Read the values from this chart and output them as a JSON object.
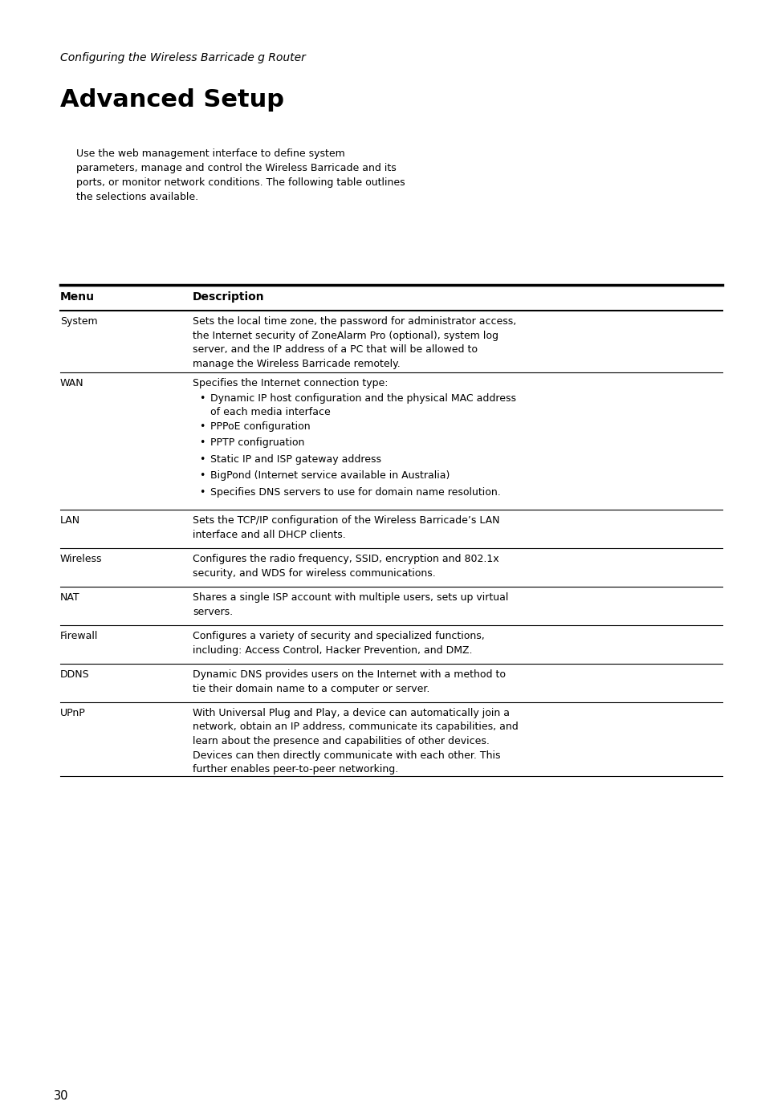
{
  "header_italic": "Configuring the Wireless Barricade g Router",
  "title": "Advanced Setup",
  "intro": "Use the web management interface to define system\nparameters, manage and control the Wireless Barricade and its\nports, or monitor network conditions. The following table outlines\nthe selections available.",
  "col1_header": "Menu",
  "col2_header": "Description",
  "rows": [
    {
      "menu": "System",
      "desc": "Sets the local time zone, the password for administrator access,\nthe Internet security of ZoneAlarm Pro (optional), system log\nserver, and the IP address of a PC that will be allowed to\nmanage the Wireless Barricade remotely.",
      "bullets": []
    },
    {
      "menu": "WAN",
      "desc": "Specifies the Internet connection type:",
      "bullets": [
        "Dynamic IP host configuration and the physical MAC address\nof each media interface",
        "PPPoE configuration",
        "PPTP configruation",
        "Static IP and ISP gateway address",
        "BigPond (Internet service available in Australia)",
        "Specifies DNS servers to use for domain name resolution."
      ]
    },
    {
      "menu": "LAN",
      "desc": "Sets the TCP/IP configuration of the Wireless Barricade’s LAN\ninterface and all DHCP clients.",
      "bullets": []
    },
    {
      "menu": "Wireless",
      "desc": "Configures the radio frequency, SSID, encryption and 802.1x\nsecurity, and WDS for wireless communications.",
      "bullets": []
    },
    {
      "menu": "NAT",
      "desc": "Shares a single ISP account with multiple users, sets up virtual\nservers.",
      "bullets": []
    },
    {
      "menu": "Firewall",
      "desc": "Configures a variety of security and specialized functions,\nincluding: Access Control, Hacker Prevention, and DMZ.",
      "bullets": []
    },
    {
      "menu": "DDNS",
      "desc": "Dynamic DNS provides users on the Internet with a method to\ntie their domain name to a computer or server.",
      "bullets": []
    },
    {
      "menu": "UPnP",
      "desc": "With Universal Plug and Play, a device can automatically join a\nnetwork, obtain an IP address, communicate its capabilities, and\nlearn about the presence and capabilities of other devices.\nDevices can then directly communicate with each other. This\nfurther enables peer-to-peer networking.",
      "bullets": []
    }
  ],
  "page_number": "30",
  "bg_color": "#ffffff",
  "text_color": "#000000"
}
